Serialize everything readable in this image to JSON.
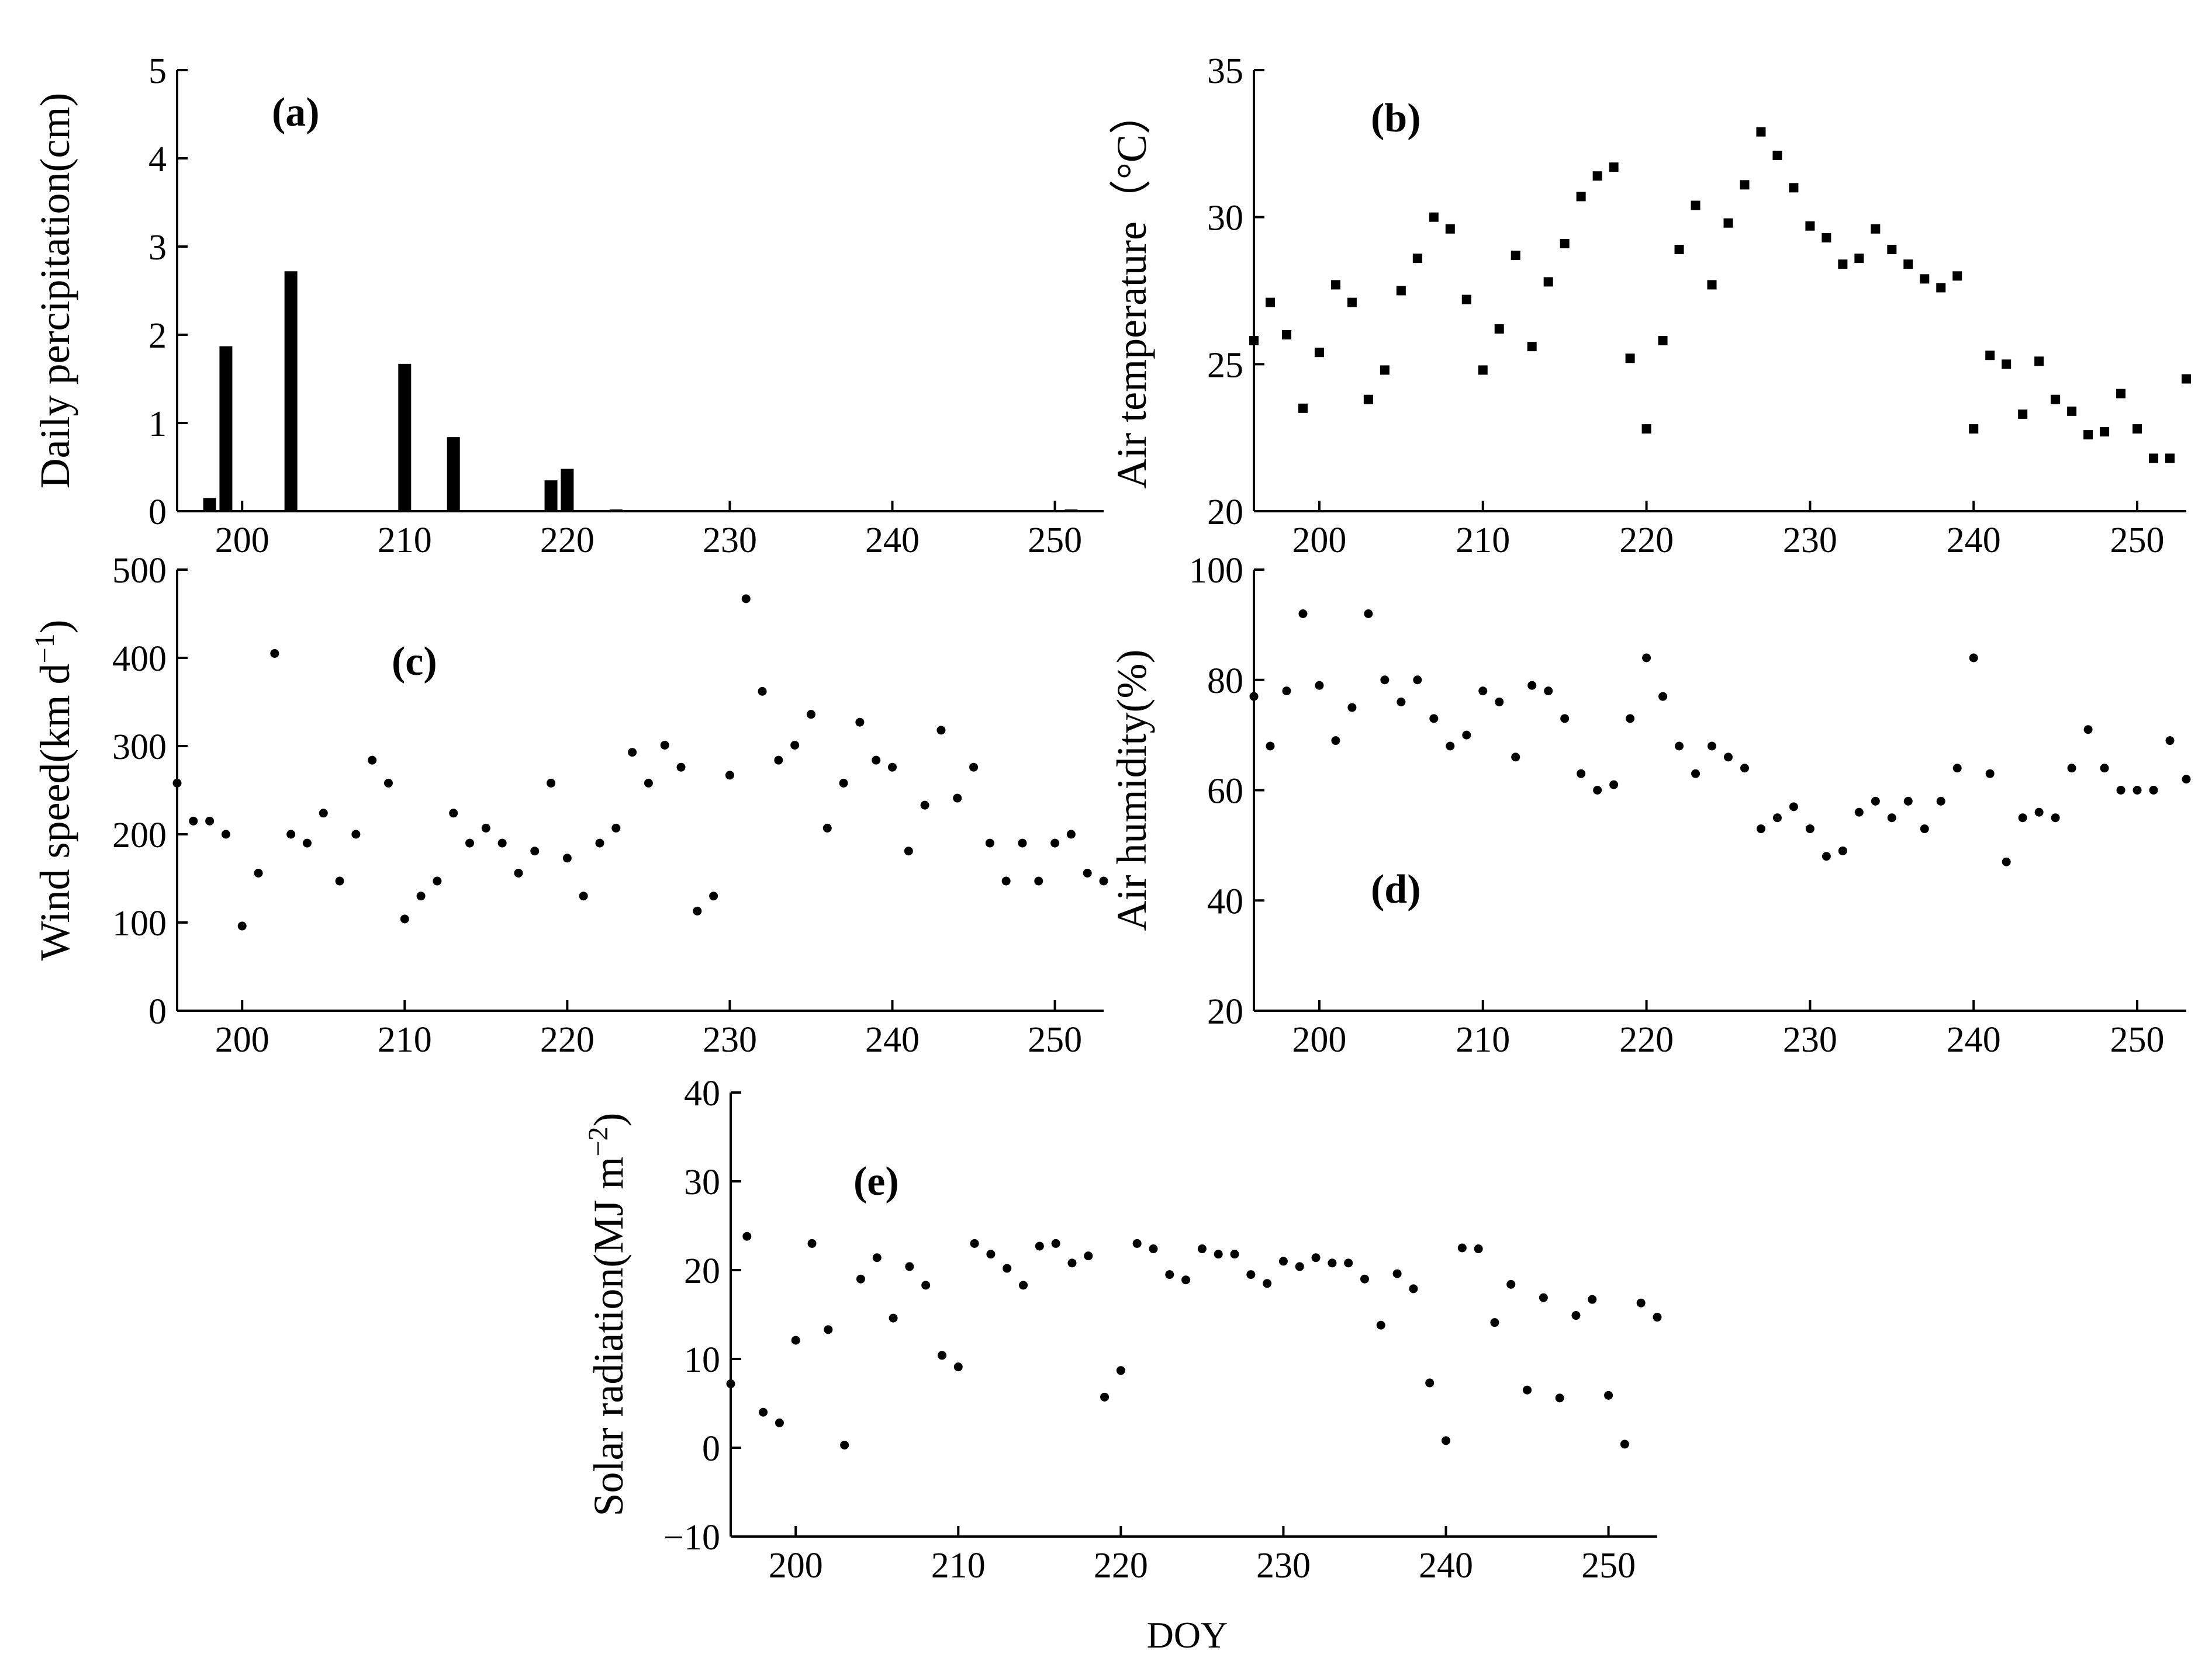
{
  "figure": {
    "xlabel": "DOY"
  },
  "chart_data": [
    {
      "id": "a",
      "type": "bar",
      "panel_label": "(a)",
      "ylabel": "Daily percipitation(cm)",
      "xlabel": "",
      "xlim": [
        196,
        253
      ],
      "ylim": [
        0,
        5
      ],
      "xticks": [
        200,
        210,
        220,
        230,
        240,
        250
      ],
      "yticks": [
        0,
        1,
        2,
        3,
        4,
        5
      ],
      "x": [
        198,
        199,
        203,
        210,
        213,
        219,
        220,
        223,
        251
      ],
      "values": [
        0.15,
        1.87,
        2.72,
        1.67,
        0.84,
        0.35,
        0.48,
        0.02,
        0.02
      ]
    },
    {
      "id": "b",
      "type": "scatter",
      "marker": "square",
      "panel_label": "(b)",
      "ylabel": "Air temperature（°C）",
      "xlabel": "",
      "xlim": [
        196,
        253
      ],
      "ylim": [
        20,
        35
      ],
      "xticks": [
        200,
        210,
        220,
        230,
        240,
        250
      ],
      "yticks": [
        20,
        25,
        30,
        35
      ],
      "x": [
        196,
        197,
        198,
        199,
        200,
        201,
        202,
        203,
        204,
        205,
        206,
        207,
        208,
        209,
        210,
        211,
        212,
        213,
        214,
        215,
        216,
        217,
        218,
        219,
        220,
        221,
        222,
        223,
        224,
        225,
        226,
        227,
        228,
        229,
        230,
        231,
        232,
        233,
        234,
        235,
        236,
        237,
        238,
        239,
        240,
        241,
        242,
        243,
        244,
        245,
        246,
        247,
        248,
        249,
        250,
        251,
        252,
        253
      ],
      "y": [
        25.8,
        27.1,
        26.0,
        23.5,
        25.4,
        27.7,
        27.1,
        23.8,
        24.8,
        27.5,
        28.6,
        30.0,
        29.6,
        27.2,
        24.8,
        26.2,
        28.7,
        25.6,
        27.8,
        29.1,
        30.7,
        31.4,
        31.7,
        25.2,
        22.8,
        25.8,
        28.9,
        30.4,
        27.7,
        29.8,
        31.1,
        32.9,
        32.1,
        31.0,
        29.7,
        29.3,
        28.4,
        28.6,
        29.6,
        28.9,
        28.4,
        27.9,
        27.6,
        28.0,
        22.8,
        25.3,
        25.0,
        23.3,
        25.1,
        23.8,
        23.4,
        22.6,
        22.7,
        24.0,
        22.8,
        21.8,
        21.8,
        24.5
      ]
    },
    {
      "id": "c",
      "type": "scatter",
      "marker": "circle",
      "panel_label": "(c)",
      "ylabel": "Wind speed(km d",
      "ylabel_sup": "−1",
      "ylabel_end": ")",
      "xlabel": "",
      "xlim": [
        196,
        253
      ],
      "ylim": [
        0,
        500
      ],
      "xticks": [
        200,
        210,
        220,
        230,
        240,
        250
      ],
      "yticks": [
        0,
        100,
        200,
        300,
        400,
        500
      ],
      "x": [
        196,
        197,
        198,
        199,
        200,
        201,
        202,
        203,
        204,
        205,
        206,
        207,
        208,
        209,
        210,
        211,
        212,
        213,
        214,
        215,
        216,
        217,
        218,
        219,
        220,
        221,
        222,
        223,
        224,
        225,
        226,
        227,
        228,
        229,
        230,
        231,
        232,
        233,
        234,
        235,
        236,
        237,
        238,
        239,
        240,
        241,
        242,
        243,
        244,
        245,
        246,
        247,
        248,
        249,
        250,
        251,
        252,
        253
      ],
      "y": [
        258,
        215,
        215,
        200,
        96,
        156,
        405,
        200,
        190,
        224,
        147,
        200,
        284,
        258,
        104,
        130,
        147,
        224,
        190,
        207,
        190,
        156,
        181,
        258,
        173,
        130,
        190,
        207,
        293,
        258,
        301,
        276,
        113,
        130,
        267,
        467,
        362,
        284,
        301,
        336,
        207,
        258,
        327,
        284,
        276,
        181,
        233,
        318,
        241,
        276,
        190,
        147,
        190,
        147,
        190,
        200,
        156,
        147
      ]
    },
    {
      "id": "d",
      "type": "scatter",
      "marker": "circle",
      "panel_label": "(d)",
      "ylabel": "Air humidity(%)",
      "xlabel": "",
      "xlim": [
        196,
        253
      ],
      "ylim": [
        20,
        100
      ],
      "xticks": [
        200,
        210,
        220,
        230,
        240,
        250
      ],
      "yticks": [
        20,
        40,
        60,
        80,
        100
      ],
      "x": [
        196,
        197,
        198,
        199,
        200,
        201,
        202,
        203,
        204,
        205,
        206,
        207,
        208,
        209,
        210,
        211,
        212,
        213,
        214,
        215,
        216,
        217,
        218,
        219,
        220,
        221,
        222,
        223,
        224,
        225,
        226,
        227,
        228,
        229,
        230,
        231,
        232,
        233,
        234,
        235,
        236,
        237,
        238,
        239,
        240,
        241,
        242,
        243,
        244,
        245,
        246,
        247,
        248,
        249,
        250,
        251,
        252,
        253
      ],
      "y": [
        77,
        68,
        78,
        92,
        79,
        69,
        75,
        92,
        80,
        76,
        80,
        73,
        68,
        70,
        78,
        76,
        66,
        79,
        78,
        73,
        63,
        60,
        61,
        73,
        84,
        77,
        68,
        63,
        68,
        66,
        64,
        53,
        55,
        57,
        53,
        48,
        49,
        56,
        58,
        55,
        58,
        53,
        58,
        64,
        84,
        63,
        47,
        55,
        56,
        55,
        64,
        71,
        64,
        60,
        60,
        60,
        69,
        62
      ]
    },
    {
      "id": "e",
      "type": "scatter",
      "marker": "circle",
      "panel_label": "(e)",
      "ylabel": "Solar radiation(MJ m",
      "ylabel_sup": "−2",
      "ylabel_end": ")",
      "xlabel": "DOY",
      "xlim": [
        196,
        253
      ],
      "ylim": [
        -10,
        40
      ],
      "xticks": [
        200,
        210,
        220,
        230,
        240,
        250
      ],
      "yticks": [
        -10,
        0,
        10,
        20,
        30,
        40
      ],
      "x": [
        196,
        197,
        198,
        199,
        200,
        201,
        202,
        203,
        204,
        205,
        206,
        207,
        208,
        209,
        210,
        211,
        212,
        213,
        214,
        215,
        216,
        217,
        218,
        219,
        220,
        221,
        222,
        223,
        224,
        225,
        226,
        227,
        228,
        229,
        230,
        231,
        232,
        233,
        234,
        235,
        236,
        237,
        238,
        239,
        240,
        241,
        242,
        243,
        244,
        245,
        246,
        247,
        248,
        249,
        250,
        251,
        252,
        253
      ],
      "y": [
        7.2,
        23.8,
        4.0,
        2.8,
        12.1,
        23.0,
        13.3,
        0.3,
        19.0,
        21.4,
        14.6,
        20.4,
        18.3,
        10.4,
        9.1,
        23.0,
        21.8,
        20.2,
        18.3,
        22.7,
        23.0,
        20.8,
        21.6,
        5.7,
        8.7,
        23.0,
        22.4,
        19.5,
        18.9,
        22.4,
        21.8,
        21.8,
        19.5,
        18.5,
        21.0,
        20.4,
        21.4,
        20.8,
        20.8,
        19.0,
        13.8,
        19.6,
        17.9,
        7.3,
        0.8,
        22.5,
        22.4,
        14.1,
        18.4,
        6.5,
        16.9,
        5.6,
        14.9,
        16.7,
        5.9,
        0.4,
        16.3,
        14.7
      ]
    }
  ]
}
